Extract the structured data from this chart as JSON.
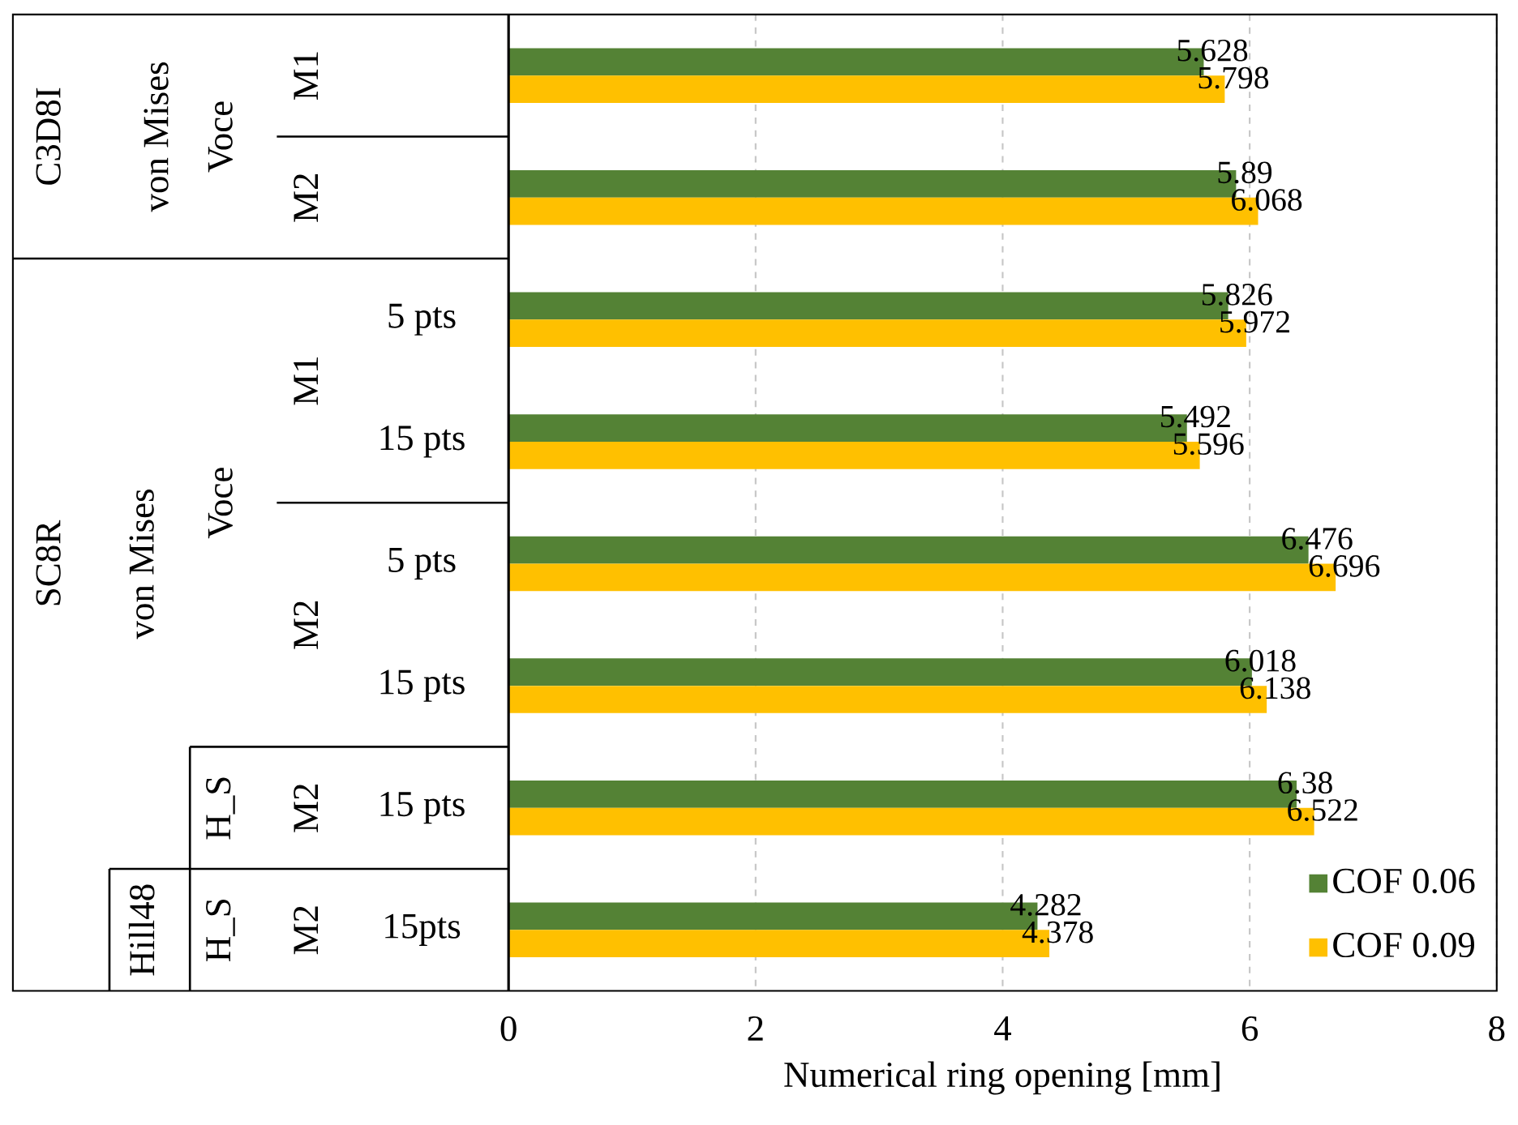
{
  "chart_data": {
    "type": "bar",
    "orientation": "horizontal",
    "xlabel": "Numerical ring opening [mm]",
    "categories": [
      null,
      null,
      "5 pts",
      "15 pts",
      "5 pts",
      "15 pts",
      "15 pts",
      "15pts"
    ],
    "series": [
      {
        "name": "COF 0.06",
        "color": "#548235",
        "values": [
          5.628,
          5.89,
          5.826,
          5.492,
          6.476,
          6.018,
          6.38,
          4.282
        ]
      },
      {
        "name": "COF 0.09",
        "color": "#ffc000",
        "values": [
          5.798,
          6.068,
          5.972,
          5.596,
          6.696,
          6.138,
          6.522,
          4.378
        ]
      }
    ],
    "xlim": [
      0,
      8
    ],
    "xticks": [
      0,
      2,
      4,
      6,
      8
    ],
    "grid": "x",
    "legend": "bottom right",
    "data_labels": true,
    "annotations": [
      "M1",
      "M2",
      "C3D8I",
      "SC8R",
      "Hill48",
      "von Mises",
      "von Mises",
      "Voce",
      "Voce",
      "H_S",
      "H_S",
      "M1",
      "M2",
      "M2",
      "M2"
    ]
  }
}
